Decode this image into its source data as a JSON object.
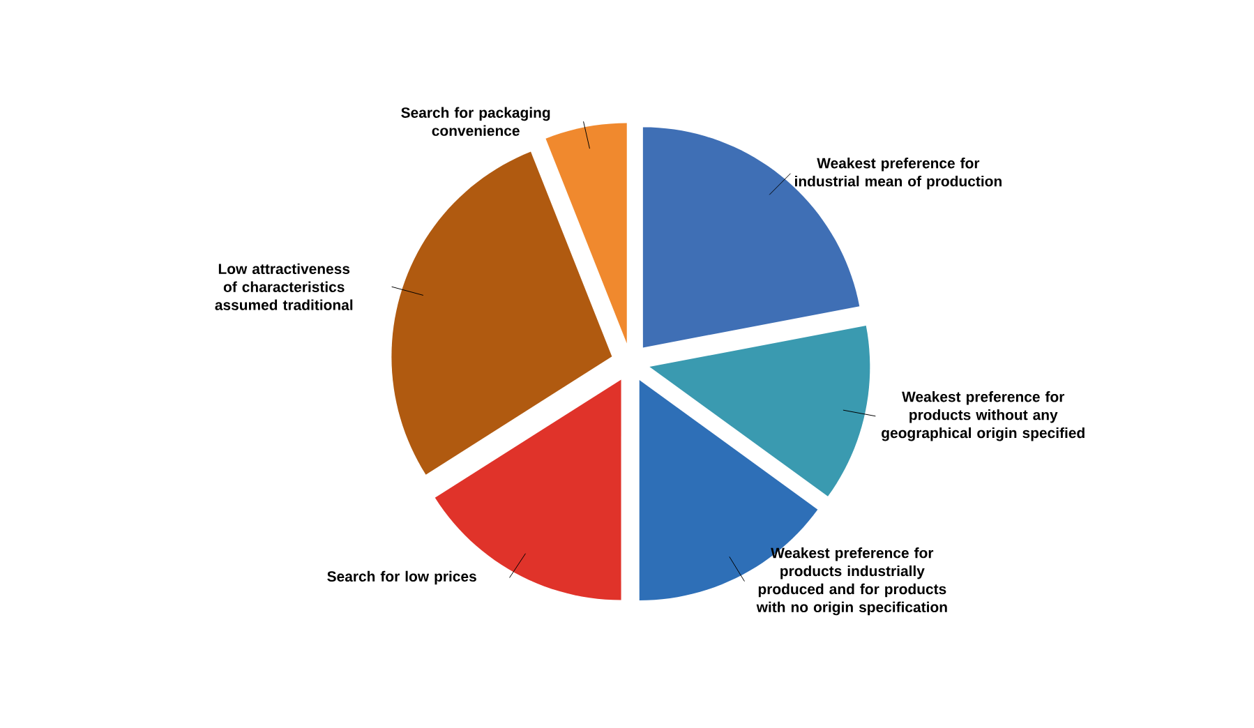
{
  "chart_data": {
    "type": "pie",
    "categories": [
      "Weakest preference for industrial mean of production",
      "Weakest preference for products without any geographical origin specified",
      "Weakest preference for products industrially produced and for products with no origin specification",
      "Search for low prices",
      "Low attractiveness of characteristics assumed traditional",
      "Search for packaging convenience"
    ],
    "values": [
      22,
      13,
      15,
      16,
      28,
      6
    ],
    "colors": [
      "#3f6fb5",
      "#3a9ab0",
      "#2e6fb7",
      "#e0332a",
      "#b05a10",
      "#f0892e"
    ]
  }
}
